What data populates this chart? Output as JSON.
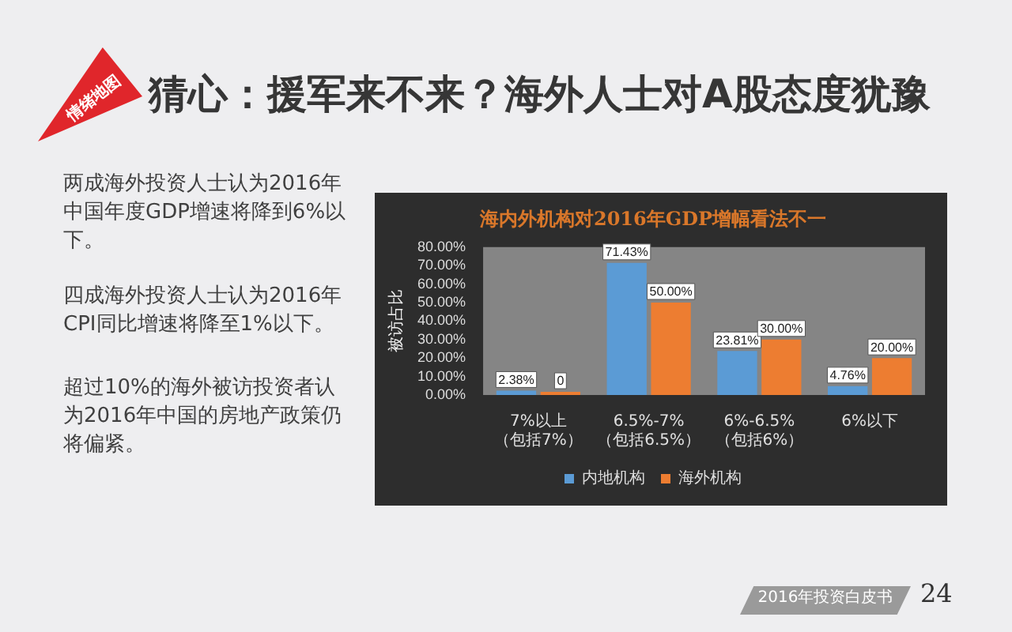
{
  "chart_data": {
    "type": "bar",
    "title": "猜心：援军来不来？海外人士对A股态度犹豫",
    "subtitle": "海内外机构对2016年GDP增幅看法不一",
    "ylabel": "被访占比",
    "annotations": [
      "情绪地图",
      "两成海外投资人士认为2016年中国年度GDP增速将降到6%以下。",
      "四成海外投资人士认为2016年CPI同比增速将降至1%以下。",
      "超过10%的海外被访投资者认为2016年中国的房地产政策仍将偏紧。",
      "2016年投资白皮书",
      "24"
    ],
    "categories": [
      "7%以上（包括7%）",
      "6.5%-7%（包括6.5%）",
      "6%-6.5%（包括6%）",
      "6%以下"
    ],
    "series": [
      {
        "name": "内地机构",
        "color": "#5b9bd5",
        "values": [
          2.38,
          71.43,
          23.81,
          4.76
        ],
        "value_labels": [
          "2.38%",
          "71.43%",
          "23.81%",
          "4.76%"
        ]
      },
      {
        "name": "海外机构",
        "color": "#ed7d31",
        "values": [
          0,
          50.0,
          30.0,
          20.0
        ],
        "value_labels": [
          "0",
          "50.00%",
          "30.00%",
          "20.00%"
        ]
      }
    ],
    "ylim": [
      0,
      80
    ],
    "yticks": [
      {
        "value": 0,
        "label": "0.00%"
      },
      {
        "value": 10,
        "label": "10.00%"
      },
      {
        "value": 20,
        "label": "20.00%"
      },
      {
        "value": 30,
        "label": "30.00%"
      },
      {
        "value": 40,
        "label": "40.00%"
      },
      {
        "value": 50,
        "label": "50.00%"
      },
      {
        "value": 60,
        "label": "60.00%"
      },
      {
        "value": 70,
        "label": "70.00%"
      },
      {
        "value": 80,
        "label": "80.00%"
      }
    ],
    "grid": false,
    "legend": "bottom"
  }
}
